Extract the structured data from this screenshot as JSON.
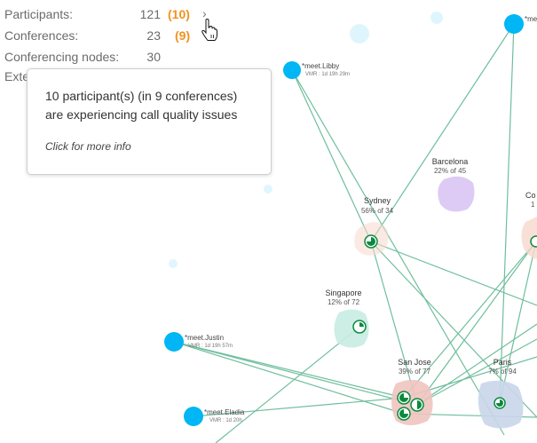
{
  "stats": {
    "participants_label": "Participants:",
    "participants_value": "121",
    "participants_alert": "(10)",
    "conferences_label": "Conferences:",
    "conferences_value": "23",
    "conferences_alert": "(9)",
    "nodes_label": "Conferencing nodes:",
    "nodes_value": "30",
    "partial_label": "Exte",
    "expand_icon": "chevron-right-icon"
  },
  "tooltip": {
    "message": "10 participant(s) (in 9 conferences) are experiencing call quality issues",
    "link": "Click for more info"
  },
  "colors": {
    "participant": "#00b6f4",
    "link": "#6fbe9d",
    "alert": "#f0921e",
    "call_badge": "#0a8a3e",
    "sydney": "#f8d8cd",
    "barcelona": "#d7c2f3",
    "singapore": "#c8ece1",
    "san_jose": "#f0c4c0",
    "paris": "#c9d6ea",
    "co": "#f8d8cd"
  },
  "locations": [
    {
      "name": "Sydney",
      "load": "56% of 34"
    },
    {
      "name": "Barcelona",
      "load": "22% of 45"
    },
    {
      "name": "Singapore",
      "load": "12% of 72"
    },
    {
      "name": "San Jose",
      "load": "39% of 77"
    },
    {
      "name": "Paris",
      "load": "7% of 94"
    },
    {
      "name": "Co",
      "load": "1"
    }
  ],
  "participants": [
    {
      "name": "*meet.Libby",
      "detail": "VMR : 1d 19h 29m"
    },
    {
      "name": "*meet.Justin",
      "detail": "VMR : 1d 19h 57m"
    },
    {
      "name": "*meet.Eladia",
      "detail": "VMR : 1d 20h"
    },
    {
      "name": "*me",
      "detail": ""
    }
  ]
}
